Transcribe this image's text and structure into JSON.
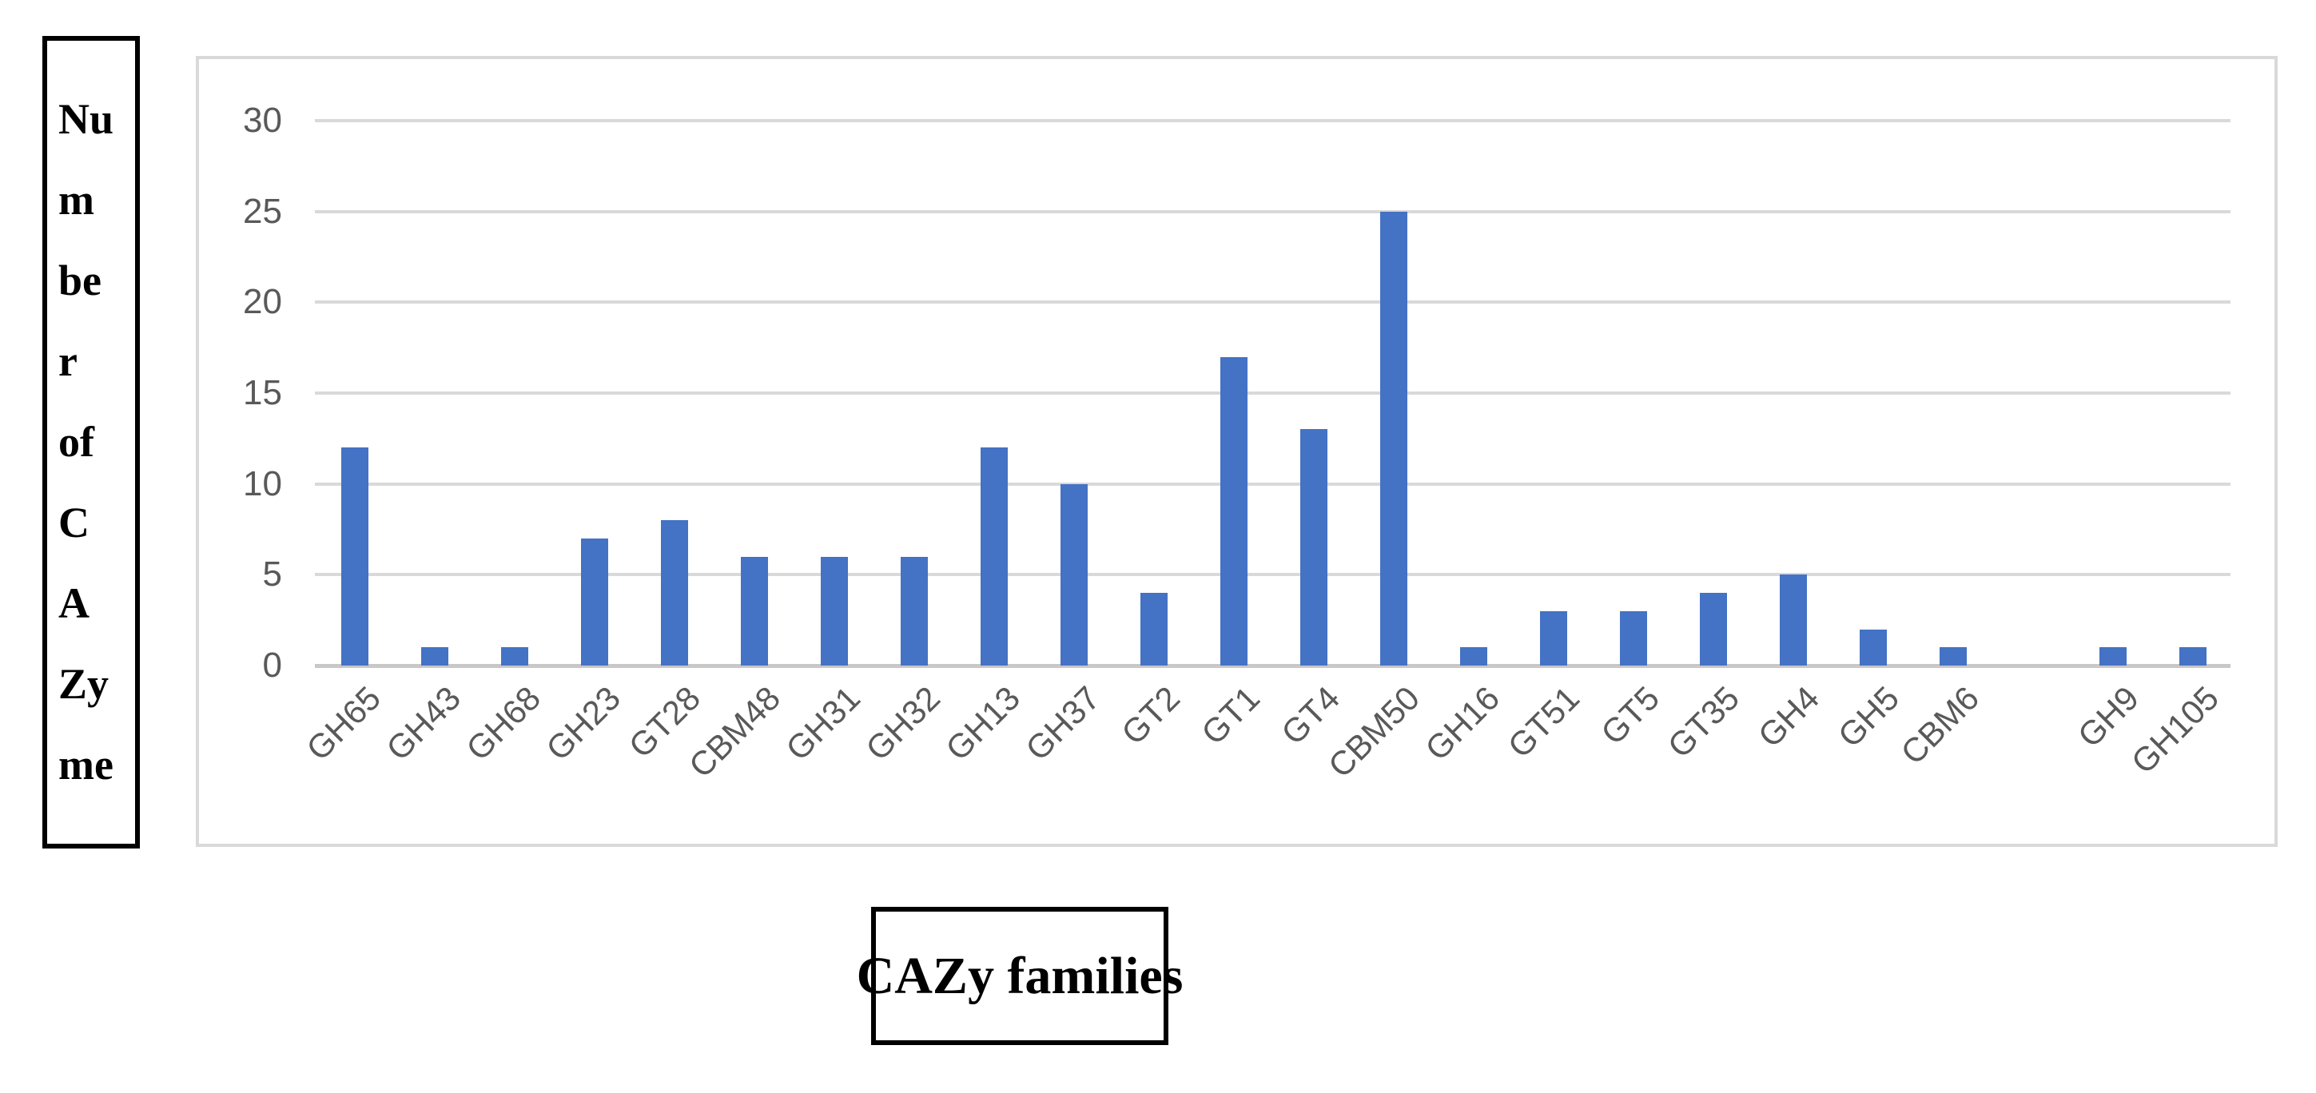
{
  "figure": {
    "ylabel_box": {
      "full": "Number of CAZyme",
      "lines": [
        "Nu",
        "m",
        "be",
        "r",
        "of",
        "C",
        "A",
        "Zy",
        "me"
      ]
    },
    "xlabel_box": {
      "text": "CAZy families"
    }
  },
  "chart_data": {
    "type": "bar",
    "title": "",
    "xlabel": "CAZy families",
    "ylabel": "Number of CAZyme",
    "categories": [
      "GH65",
      "GH43",
      "GH68",
      "GH23",
      "GT28",
      "CBM48",
      "GH31",
      "GH32",
      "GH13",
      "GH37",
      "GT2",
      "GT1",
      "GT4",
      "CBM50",
      "GH16",
      "GT51",
      "GT5",
      "GT35",
      "GH4",
      "GH5",
      "CBM6",
      "",
      "GH9",
      "GH105"
    ],
    "values": [
      12,
      1,
      1,
      7,
      8,
      6,
      6,
      6,
      12,
      10,
      4,
      17,
      13,
      25,
      1,
      3,
      3,
      4,
      5,
      2,
      1,
      0,
      1,
      1
    ],
    "yticks": [
      0,
      5,
      10,
      15,
      20,
      25,
      30
    ],
    "ylim": [
      0,
      30
    ],
    "grid": true,
    "legend": false,
    "bar_color": "#4472C4",
    "gridline_color": "#D9D9D9",
    "axis_line_color": "#C9C7C7",
    "tick_label_color": "#595959",
    "frame_border_color": "#D9D9D9"
  }
}
